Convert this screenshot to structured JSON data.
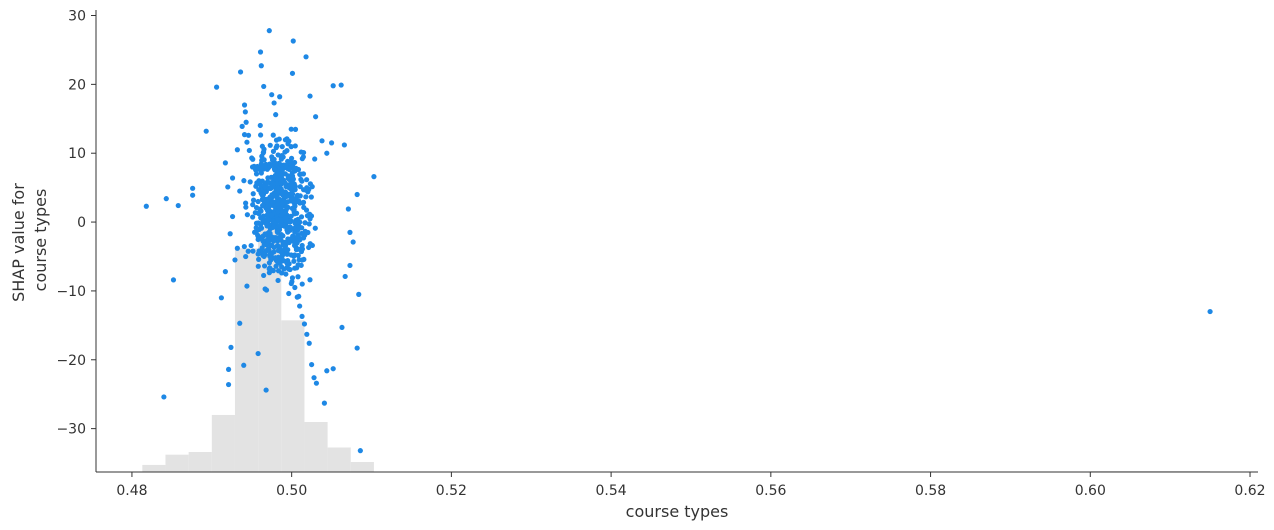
{
  "chart_data": {
    "type": "scatter",
    "xlabel": "course types",
    "ylabel": [
      "SHAP value for",
      "course types"
    ],
    "xlim": [
      0.4755,
      0.621
    ],
    "ylim": [
      -36.3,
      30.8
    ],
    "x_ticks": [
      0.48,
      0.5,
      0.52,
      0.54,
      0.56,
      0.58,
      0.6,
      0.62
    ],
    "x_tick_labels": [
      "0.48",
      "0.50",
      "0.52",
      "0.54",
      "0.56",
      "0.58",
      "0.60",
      "0.62"
    ],
    "y_ticks": [
      -30,
      -20,
      -10,
      0,
      10,
      20,
      30
    ],
    "y_tick_labels": [
      "−30",
      "−20",
      "−10",
      "0",
      "10",
      "20",
      "30"
    ],
    "grid": false,
    "point_color": "#1e88e5",
    "histogram_color": "#e3e3e3",
    "axis_color": "#333333",
    "histogram": {
      "bin_edges": [
        0.4813,
        0.4842,
        0.4871,
        0.49,
        0.4929,
        0.4958,
        0.4987,
        0.5016,
        0.5045,
        0.5074,
        0.5103
      ],
      "counts": [
        1,
        6,
        8,
        65,
        1000,
        1200,
        460,
        50,
        12,
        2
      ],
      "outlier_bin": {
        "edges": [
          0.6,
          0.615
        ],
        "count": 1
      }
    },
    "series": [
      {
        "x": [
          0.4818,
          0.4843,
          0.4852,
          0.4858,
          0.4876,
          0.4876,
          0.4893,
          0.4906,
          0.484,
          0.4912,
          0.4917,
          0.4917,
          0.492,
          0.4921,
          0.4921,
          0.4924,
          0.4926,
          0.4932,
          0.4935,
          0.4936,
          0.494,
          0.4941,
          0.4942,
          0.4943,
          0.4944,
          0.4946,
          0.4951,
          0.4956,
          0.4958,
          0.4961,
          0.4962,
          0.4965,
          0.4972,
          0.4968,
          0.4975,
          0.4978,
          0.498,
          0.4985,
          0.5002,
          0.5001,
          0.5018,
          0.5023,
          0.503,
          0.5038,
          0.5044,
          0.505,
          0.5052,
          0.5062,
          0.5066,
          0.5073,
          0.5082,
          0.5086,
          0.5103,
          0.5084,
          0.5082,
          0.5063,
          0.5067,
          0.5071,
          0.5073,
          0.5077,
          0.5052,
          0.5044,
          0.5041,
          0.5031,
          0.5028,
          0.5025,
          0.5022,
          0.5019,
          0.5016,
          0.5013,
          0.501,
          0.5007,
          0.5004,
          0.5001,
          0.4998,
          0.4995,
          0.4992,
          0.4989,
          0.4986,
          0.4983,
          0.498,
          0.4977,
          0.4974,
          0.4971,
          0.4968,
          0.4965,
          0.4962,
          0.4959,
          0.4956,
          0.4953,
          0.495,
          0.4947,
          0.4944,
          0.4941,
          0.4938,
          0.4935,
          0.4932,
          0.4929,
          0.4926,
          0.4923,
          0.615
        ],
        "y": [
          2.3,
          3.4,
          -8.4,
          2.4,
          4.9,
          3.9,
          13.2,
          19.6,
          -25.4,
          -11.0,
          -7.2,
          8.6,
          5.1,
          -21.4,
          -23.6,
          -18.2,
          0.8,
          10.5,
          -14.7,
          21.8,
          -20.8,
          17.0,
          16.0,
          14.5,
          -9.3,
          12.6,
          8.0,
          2.1,
          -19.1,
          24.7,
          22.7,
          19.7,
          27.8,
          -24.4,
          18.5,
          17.3,
          15.6,
          18.2,
          26.3,
          21.6,
          24.0,
          18.3,
          15.3,
          11.8,
          10.0,
          11.5,
          19.8,
          19.9,
          11.2,
          -1.5,
          4.0,
          -33.2,
          6.6,
          -10.5,
          -18.3,
          -15.3,
          -7.9,
          1.9,
          -6.3,
          -2.9,
          -21.3,
          -21.6,
          -26.3,
          -23.4,
          -22.6,
          -20.7,
          -17.6,
          -16.3,
          -14.8,
          -13.7,
          -12.2,
          -10.9,
          -9.5,
          -8.1,
          -6.9,
          -5.6,
          -4.4,
          -3.3,
          -2.1,
          -1.2,
          -0.3,
          0.6,
          1.5,
          2.4,
          3.3,
          4.2,
          5.1,
          6.0,
          7.0,
          8.1,
          9.3,
          10.4,
          11.6,
          12.7,
          13.9,
          4.5,
          -3.8,
          -5.5,
          6.4,
          -1.7,
          -13.0
        ],
        "cloud": {
          "center_x": 0.4986,
          "spread_x": 0.0025,
          "center_y": 1.5,
          "spread_y": 7.0,
          "count": 620
        }
      }
    ]
  }
}
